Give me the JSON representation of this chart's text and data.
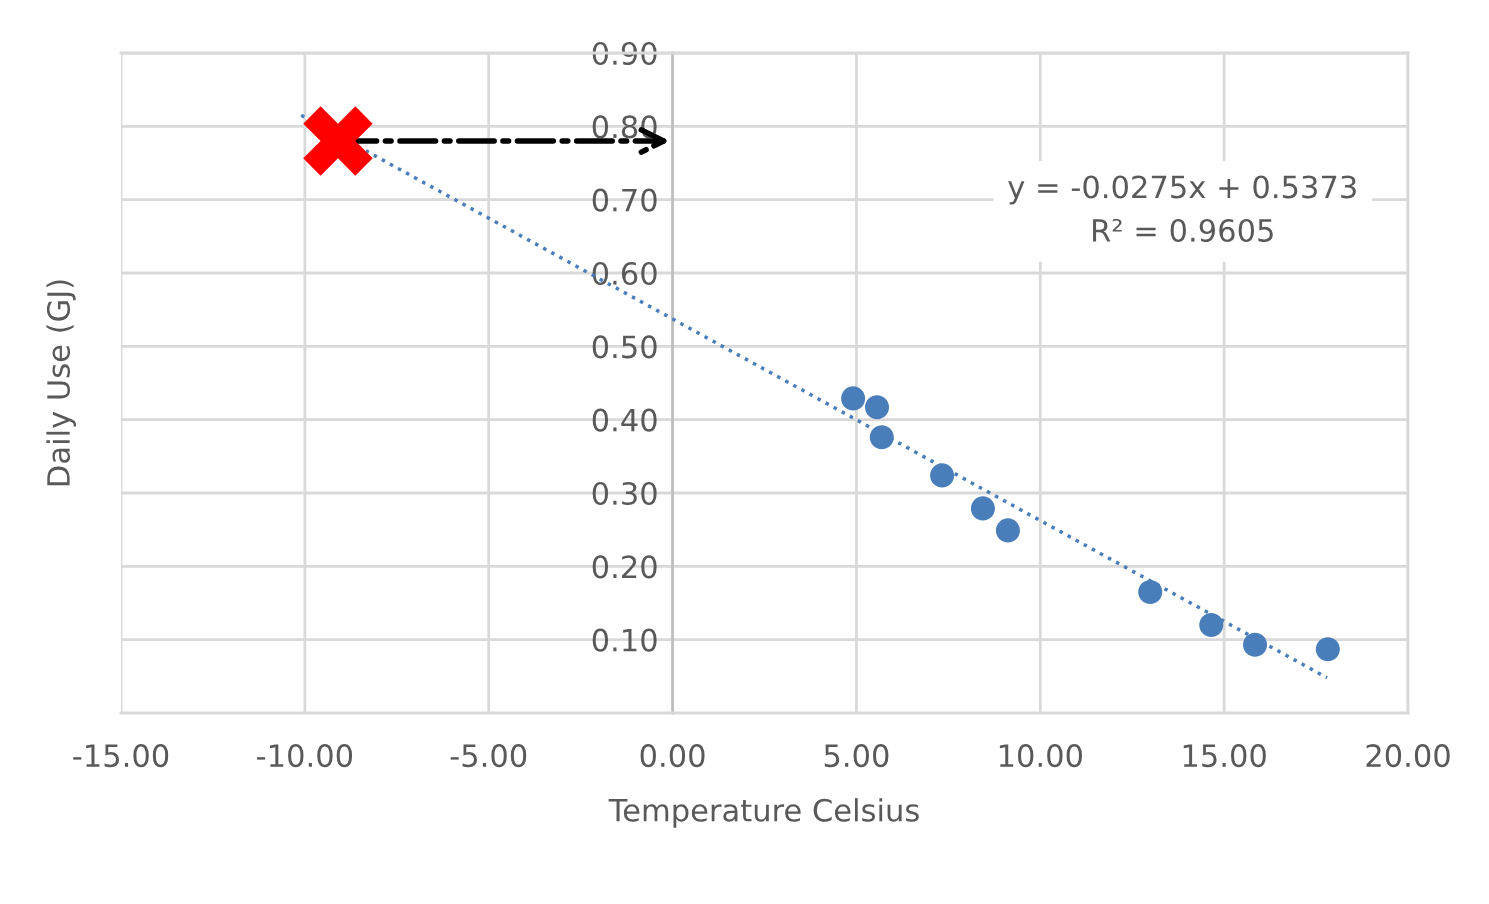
{
  "chart_data": {
    "type": "scatter",
    "xlabel": "Temperature Celsius",
    "ylabel": "Daily Use (GJ)",
    "series": [
      {
        "color": "#4a7ebb",
        "marker": "circle",
        "x": [
          4.91,
          5.56,
          5.69,
          7.33,
          8.44,
          9.12,
          12.99,
          14.65,
          15.84,
          17.82
        ],
        "values": [
          0.429,
          0.417,
          0.376,
          0.324,
          0.279,
          0.249,
          0.165,
          0.12,
          0.093,
          0.087
        ]
      },
      {
        "type": "line",
        "color": "#4a7ebb",
        "line_style": "dotted",
        "marker": "none",
        "x": [
          -10.1,
          17.8
        ],
        "values": [
          0.815,
          0.048
        ]
      },
      {
        "color": "#ff0000",
        "marker": "cross",
        "x": [
          -9.1
        ],
        "values": [
          0.78
        ]
      }
    ],
    "annotations": [
      "y = -0.0275x + 0.5373\nR² = 0.9605"
    ],
    "xlim": [
      -15,
      20
    ],
    "xticks": [
      {
        "value": -15,
        "label": "-15.00"
      },
      {
        "value": -10,
        "label": "-10.00"
      },
      {
        "value": -5,
        "label": "-5.00"
      },
      {
        "value": 0,
        "label": "0.00"
      },
      {
        "value": 5,
        "label": "5.00"
      },
      {
        "value": 10,
        "label": "10.00"
      },
      {
        "value": 15,
        "label": "15.00"
      },
      {
        "value": 20,
        "label": "20.00"
      }
    ],
    "ylim": [
      0,
      0.9
    ],
    "yticks": [
      {
        "value": 0.1,
        "label": "0.10"
      },
      {
        "value": 0.2,
        "label": "0.20"
      },
      {
        "value": 0.3,
        "label": "0.30"
      },
      {
        "value": 0.4,
        "label": "0.40"
      },
      {
        "value": 0.5,
        "label": "0.50"
      },
      {
        "value": 0.6,
        "label": "0.60"
      },
      {
        "value": 0.7,
        "label": "0.70"
      },
      {
        "value": 0.8,
        "label": "0.80"
      },
      {
        "value": 0.9,
        "label": "0.90"
      }
    ],
    "grid": true,
    "legend": false
  }
}
